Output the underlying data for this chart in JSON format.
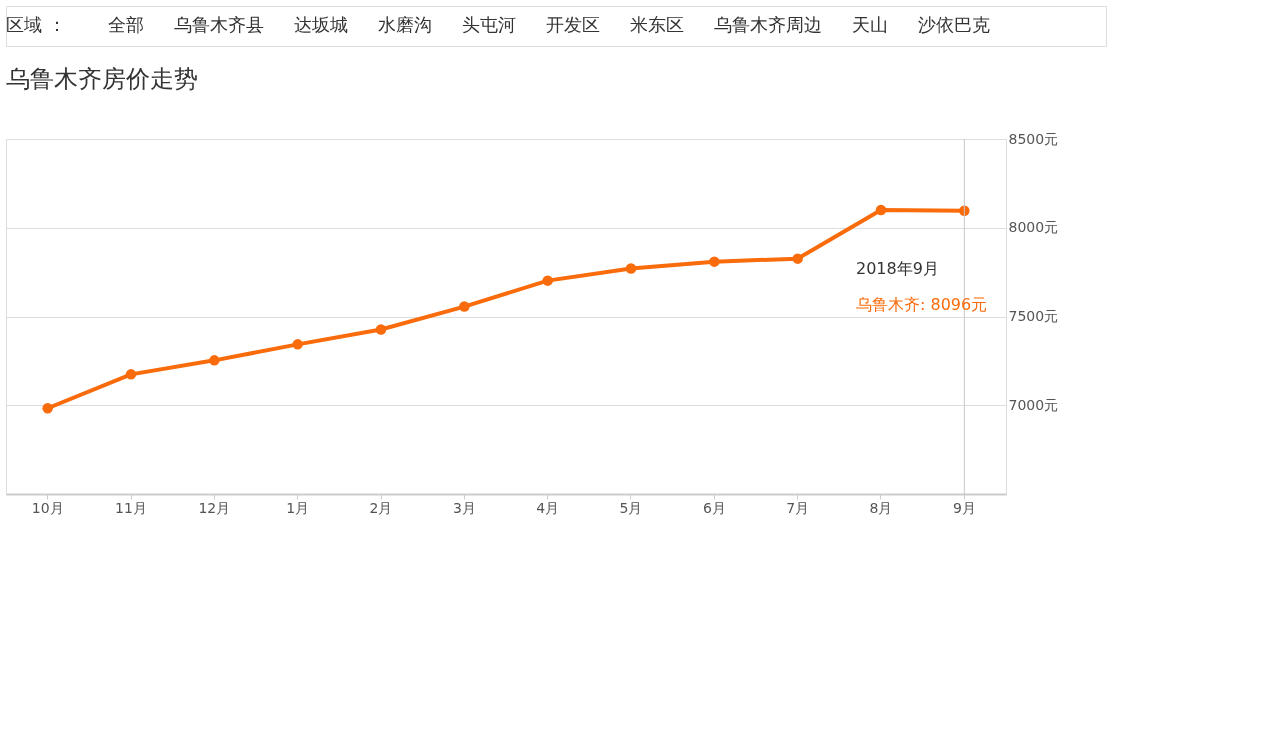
{
  "chart_data": {
    "type": "line",
    "title": "乌鲁木齐房价走势",
    "categories": [
      "10月",
      "11月",
      "12月",
      "1月",
      "2月",
      "3月",
      "4月",
      "5月",
      "6月",
      "7月",
      "8月",
      "9月"
    ],
    "series": [
      {
        "color": "#f96b0b",
        "values": [
          6983,
          7174,
          7253,
          7343,
          7427,
          7556,
          7702,
          7770,
          7809,
          7826,
          8100,
          8096
        ]
      }
    ],
    "ylim": [
      6500,
      8500
    ],
    "yticks": [
      {
        "value": 7000,
        "label": "7000元"
      },
      {
        "value": 7500,
        "label": "7500元"
      },
      {
        "value": 8000,
        "label": "8000元"
      },
      {
        "value": 8500,
        "label": "8500元"
      }
    ],
    "grid": "y",
    "marker": "circle",
    "line_style": "solid",
    "ref_lines": [
      {
        "axis": "x",
        "value": "9月",
        "color": "#c8c8c8"
      }
    ],
    "annotations": [
      "区域 ：",
      "全部",
      "乌鲁木齐县",
      "达坂城",
      "水磨沟",
      "头屯河",
      "开发区",
      "米东区",
      "乌鲁木齐周边",
      "天山",
      "沙依巴克",
      "2018年9月",
      "乌鲁木齐: 8096元"
    ]
  }
}
